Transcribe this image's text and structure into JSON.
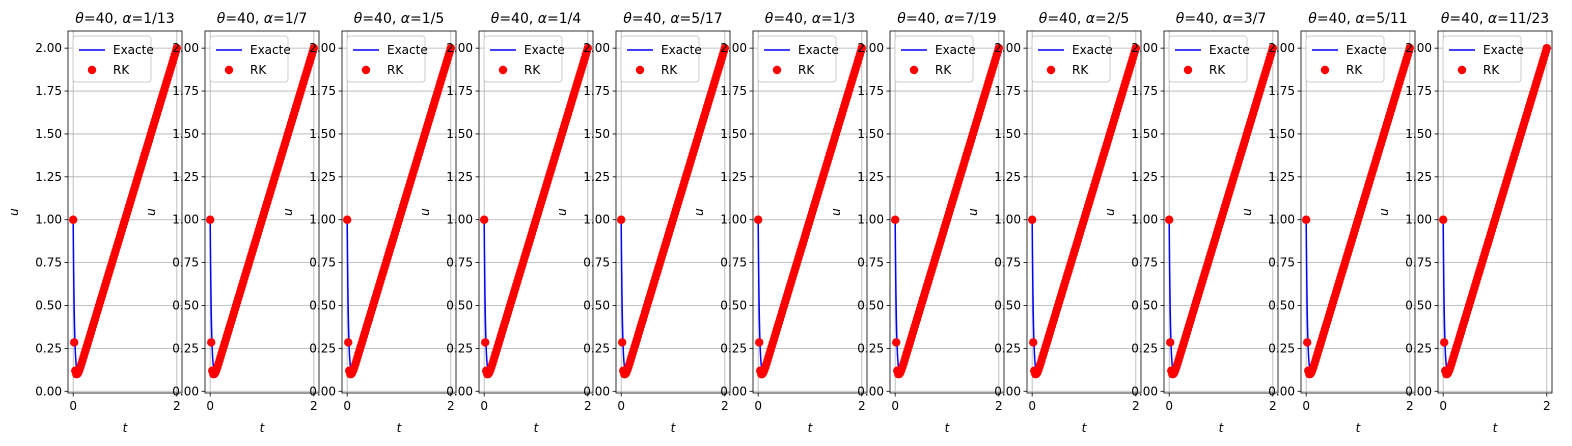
{
  "chart_data": {
    "type": "line",
    "xlabel": "t",
    "ylabel": "u",
    "xticks": [
      "0",
      "2"
    ],
    "yticks": [
      "0.00",
      "0.25",
      "0.50",
      "0.75",
      "1.00",
      "1.25",
      "1.50",
      "1.75",
      "2.00"
    ],
    "xlim": [
      -0.1,
      2.1
    ],
    "ylim": [
      -0.01,
      2.1
    ],
    "grid": true,
    "legend_position": "upper-left",
    "series_names": [
      "Exacte",
      "RK"
    ],
    "series_styles": {
      "Exacte": {
        "color": "#0000ff",
        "kind": "line"
      },
      "RK": {
        "color": "#ff0000",
        "kind": "markers"
      }
    },
    "shared_curve": {
      "description_points_t": [
        0,
        0.02,
        0.05,
        0.08,
        0.1,
        2.0
      ],
      "u0": 1.0,
      "theta": 40,
      "rk_early_points": [
        {
          "t": 0.0,
          "u": 1.0
        },
        {
          "t": 0.02,
          "u": 0.285
        },
        {
          "t": 0.04,
          "u": 0.12
        },
        {
          "t": 0.06,
          "u": 0.1
        }
      ],
      "rk_step": 0.02,
      "asymptote": "u = t"
    },
    "panels": [
      {
        "title_theta": "40",
        "title_alpha": "1/13"
      },
      {
        "title_theta": "40",
        "title_alpha": "1/7"
      },
      {
        "title_theta": "40",
        "title_alpha": "1/5"
      },
      {
        "title_theta": "40",
        "title_alpha": "1/4"
      },
      {
        "title_theta": "40",
        "title_alpha": "5/17"
      },
      {
        "title_theta": "40",
        "title_alpha": "1/3"
      },
      {
        "title_theta": "40",
        "title_alpha": "7/19"
      },
      {
        "title_theta": "40",
        "title_alpha": "2/5"
      },
      {
        "title_theta": "40",
        "title_alpha": "3/7"
      },
      {
        "title_theta": "40",
        "title_alpha": "5/11"
      },
      {
        "title_theta": "40",
        "title_alpha": "11/23"
      }
    ]
  }
}
